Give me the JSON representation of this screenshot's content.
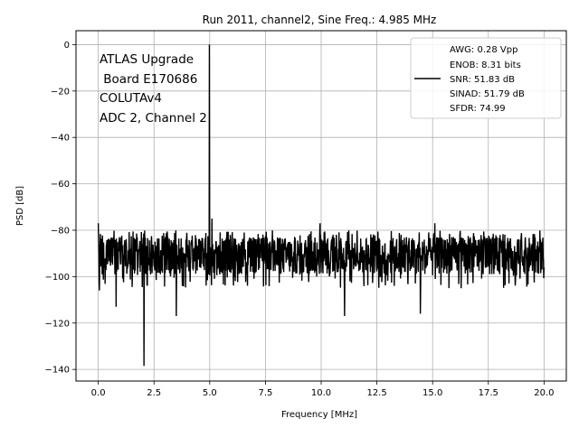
{
  "chart_data": {
    "type": "line",
    "title": "Run 2011, channel2, Sine Freq.: 4.985 MHz",
    "xlabel": "Frequency [MHz]",
    "ylabel": "PSD [dB]",
    "xlim": [
      -1.0,
      21.0
    ],
    "ylim": [
      -145,
      6
    ],
    "xticks": [
      0.0,
      2.5,
      5.0,
      7.5,
      10.0,
      12.5,
      15.0,
      17.5,
      20.0
    ],
    "xtick_labels": [
      "0.0",
      "2.5",
      "5.0",
      "7.5",
      "10.0",
      "12.5",
      "15.0",
      "17.5",
      "20.0"
    ],
    "yticks": [
      0,
      -20,
      -40,
      -60,
      -80,
      -100,
      -120,
      -140
    ],
    "ytick_labels": [
      "0",
      "−20",
      "−40",
      "−60",
      "−80",
      "−100",
      "−120",
      "−140"
    ],
    "grid": true,
    "legend_position": "top-right",
    "annotation_lines": [
      "ATLAS Upgrade",
      " Board E170686",
      "COLUTAv4",
      "ADC 2, Channel 2"
    ],
    "legend_lines": [
      "AWG: 0.28 Vpp",
      "ENOB: 8.31 bits",
      "SNR: 51.83 dB",
      "SINAD: 51.79 dB",
      "SFDR: 74.99"
    ],
    "series": [
      {
        "color": "#000000",
        "noise_floor": {
          "x_range": [
            0.0,
            20.0
          ],
          "mean": -91,
          "spread": [
            -105,
            -80
          ]
        },
        "features": [
          {
            "x": 0.0,
            "y": -77
          },
          {
            "x": 0.05,
            "y": -106
          },
          {
            "x": 0.8,
            "y": -113
          },
          {
            "x": 2.05,
            "y": -138.5
          },
          {
            "x": 3.5,
            "y": -117
          },
          {
            "x": 4.985,
            "y": 0
          },
          {
            "x": 5.1,
            "y": -75
          },
          {
            "x": 9.95,
            "y": -77
          },
          {
            "x": 11.05,
            "y": -117
          },
          {
            "x": 14.45,
            "y": -116
          },
          {
            "x": 15.1,
            "y": -77
          },
          {
            "x": 20.0,
            "y": -96
          }
        ]
      }
    ]
  }
}
